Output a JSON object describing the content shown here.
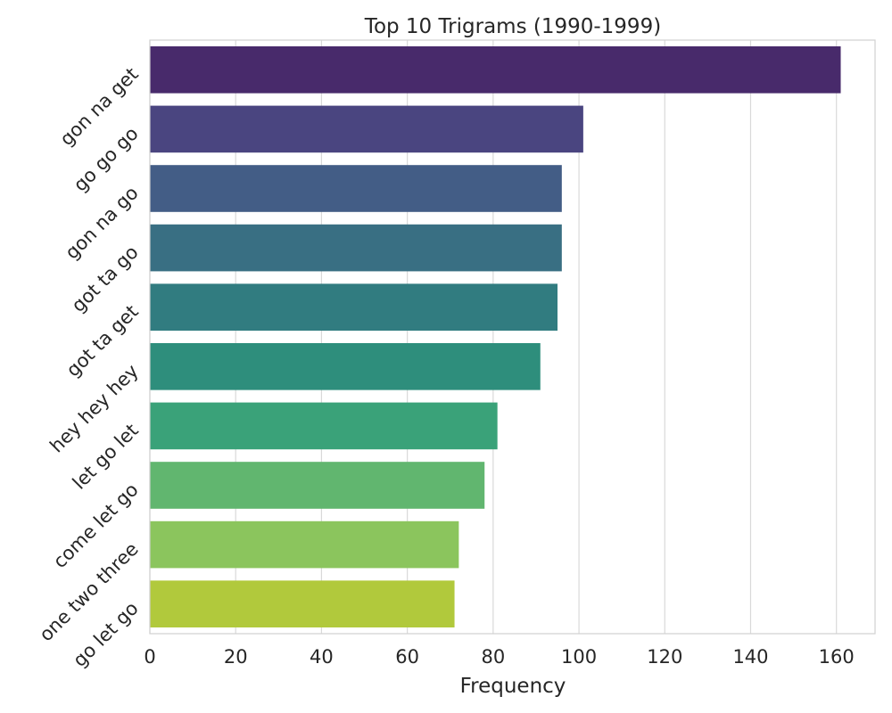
{
  "chart_data": {
    "type": "bar",
    "orientation": "horizontal",
    "title": "Top 10 Trigrams (1990-1999)",
    "xlabel": "Frequency",
    "ylabel": "",
    "categories": [
      "gon na get",
      "go go go",
      "gon na go",
      "got ta go",
      "got ta get",
      "hey hey hey",
      "let go let",
      "come let go",
      "one two three",
      "go let go"
    ],
    "values": [
      161,
      101,
      96,
      96,
      95,
      91,
      81,
      78,
      72,
      71
    ],
    "colors": [
      "#482a6b",
      "#4a4580",
      "#435d86",
      "#396f83",
      "#317c80",
      "#2e8e7c",
      "#3aa279",
      "#61b66f",
      "#8bc55d",
      "#b1c93c"
    ],
    "xlim": [
      0,
      169
    ],
    "xticks": [
      0,
      20,
      40,
      60,
      80,
      100,
      120,
      140,
      160
    ],
    "grid": "x",
    "legend": "none"
  }
}
